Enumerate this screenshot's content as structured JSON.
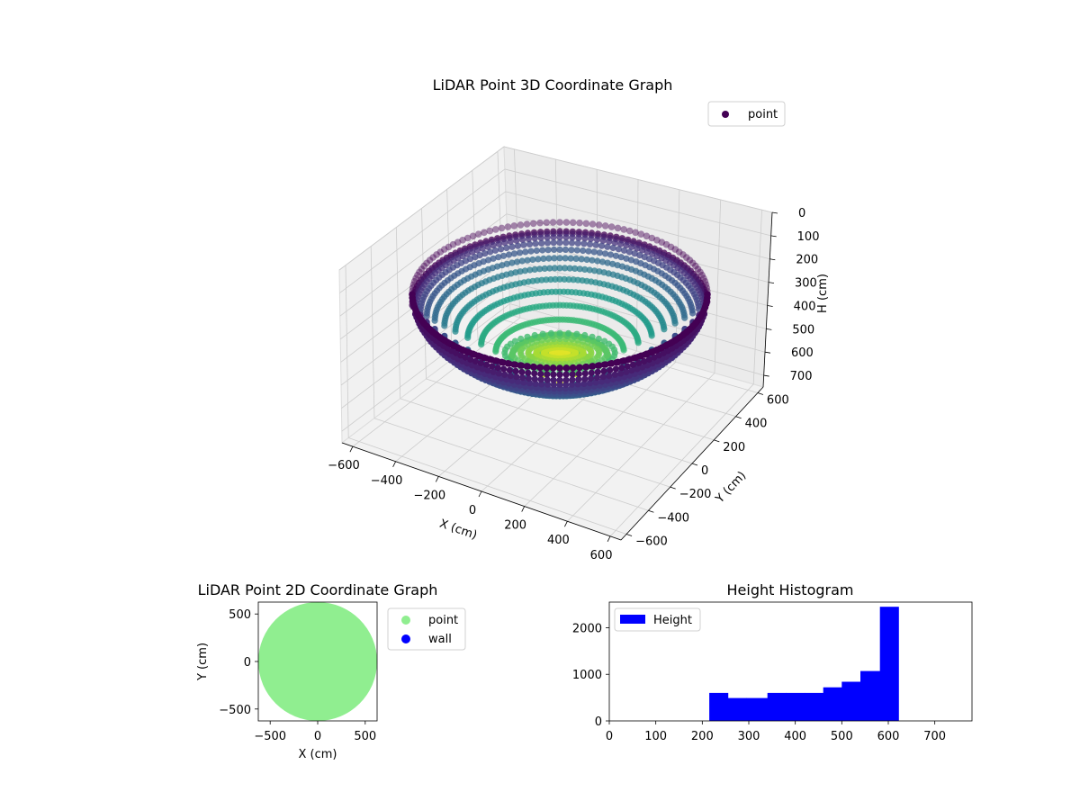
{
  "chart_data": [
    {
      "type": "scatter",
      "title": "LiDAR Point 3D Coordinate Graph",
      "xlabel": "X (cm)",
      "ylabel": "Y (cm)",
      "zlabel": "H (cm)",
      "xlim": [
        -650,
        650
      ],
      "ylim": [
        -650,
        650
      ],
      "zlim": [
        750,
        0
      ],
      "xticks": [
        "−600",
        "−400",
        "−200",
        "0",
        "200",
        "400",
        "600"
      ],
      "yticks": [
        "−600",
        "−400",
        "−200",
        "0",
        "200",
        "400",
        "600"
      ],
      "zticks": [
        "0",
        "100",
        "200",
        "300",
        "400",
        "500",
        "600",
        "700"
      ],
      "legend": [
        {
          "label": "point",
          "color": "#440154"
        }
      ],
      "legend_position": "top-right",
      "colormap": "viridis",
      "surface": {
        "shape": "hemispherical bowl",
        "radius": 620,
        "rim_height": 210,
        "bottom_height": 620
      },
      "grid": true
    },
    {
      "type": "scatter",
      "title": "LiDAR Point 2D Coordinate Graph",
      "xlabel": "X (cm)",
      "ylabel": "Y (cm)",
      "xlim": [
        -625,
        625
      ],
      "ylim": [
        -625,
        625
      ],
      "xticks": [
        "−500",
        "0",
        "500"
      ],
      "yticks": [
        "−500",
        "0",
        "500"
      ],
      "series": [
        {
          "name": "point",
          "color": "#90ee90",
          "region": {
            "shape": "disk",
            "radius": 625
          }
        },
        {
          "name": "wall",
          "color": "#0000ff",
          "points": []
        }
      ],
      "legend_position": "outside-right"
    },
    {
      "type": "bar",
      "title": "Height Histogram",
      "xlabel": "",
      "ylabel": "",
      "xlim": [
        0,
        780
      ],
      "ylim": [
        0,
        2550
      ],
      "xticks": [
        "0",
        "100",
        "200",
        "300",
        "400",
        "500",
        "600",
        "700"
      ],
      "yticks": [
        "0",
        "1000",
        "2000"
      ],
      "bin_edges": [
        215,
        255,
        295,
        340,
        380,
        420,
        460,
        500,
        540,
        582,
        622
      ],
      "values": [
        600,
        490,
        490,
        600,
        600,
        600,
        720,
        840,
        1070,
        2450
      ],
      "color": "#0000ff",
      "legend": [
        {
          "label": "Height",
          "color": "#0000ff"
        }
      ],
      "legend_position": "top-left"
    }
  ]
}
